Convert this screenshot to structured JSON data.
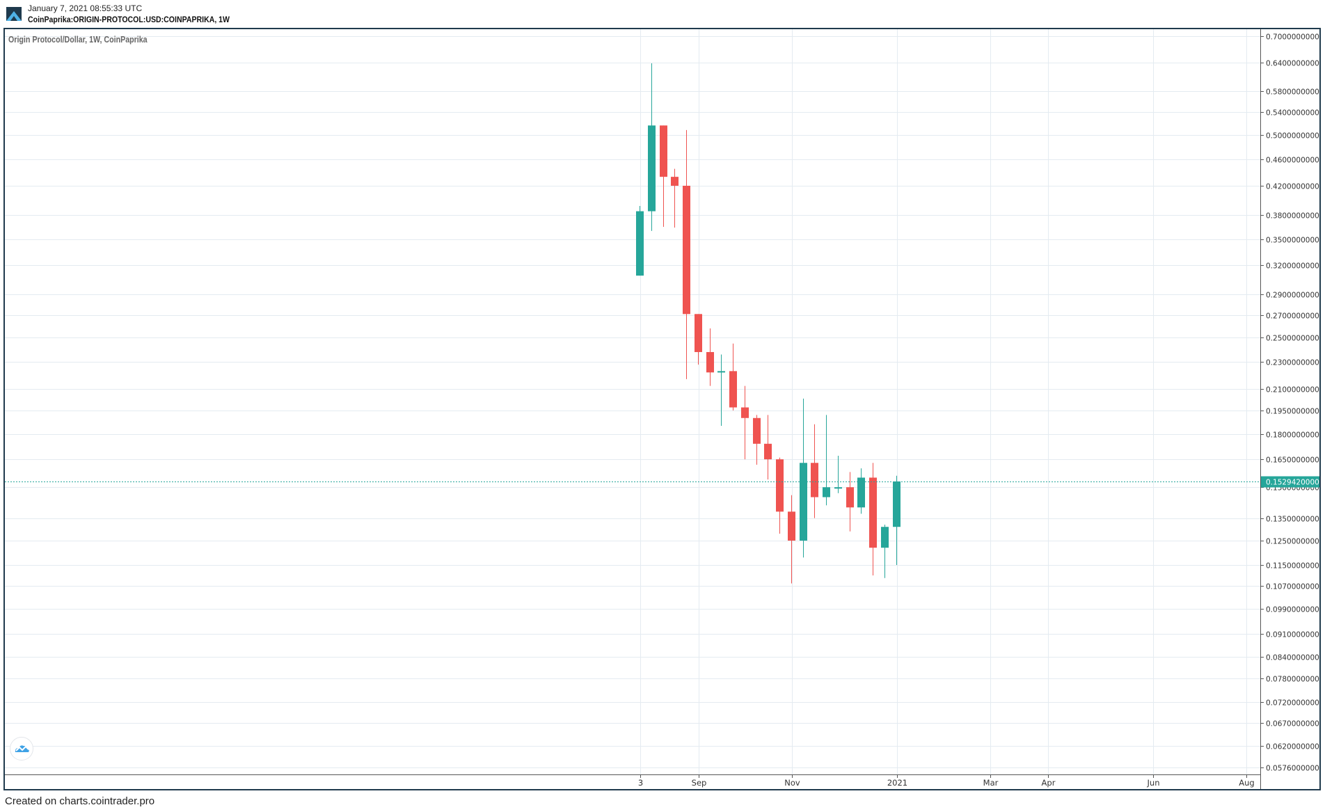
{
  "header": {
    "timestamp": "January 7, 2021 08:55:33 UTC",
    "symbol": "CoinPaprika:ORIGIN-PROTOCOL:USD:COINPAPRIKA, 1W",
    "logo_icon": "cointrader-logo-icon"
  },
  "chart": {
    "series_label": "Origin Protocol/Dollar, 1W, CoinPaprika",
    "last_price_label": "0.1529420000"
  },
  "footer": {
    "credit": "Created on charts.cointrader.pro"
  },
  "colors": {
    "up": "#26a69a",
    "down": "#ef5350",
    "grid": "#e4ebf1",
    "frame": "#1f3a4d",
    "axis": "#555555",
    "last_price": "#26a69a"
  },
  "chart_data": {
    "type": "candlestick",
    "title": "Origin Protocol/Dollar, 1W, CoinPaprika",
    "xlabel": "",
    "ylabel": "",
    "y_scale": "log",
    "ylim": [
      0.0576,
      0.7
    ],
    "grid": true,
    "legend": "none",
    "y_ticks": [
      "0.7000000000",
      "0.6400000000",
      "0.5800000000",
      "0.5400000000",
      "0.5000000000",
      "0.4600000000",
      "0.4200000000",
      "0.3800000000",
      "0.3500000000",
      "0.3200000000",
      "0.2900000000",
      "0.2700000000",
      "0.2500000000",
      "0.2300000000",
      "0.2100000000",
      "0.1950000000",
      "0.1800000000",
      "0.1650000000",
      "0.1500000000",
      "0.1350000000",
      "0.1250000000",
      "0.1150000000",
      "0.1070000000",
      "0.0990000000",
      "0.0910000000",
      "0.0840000000",
      "0.0780000000",
      "0.0720000000",
      "0.0670000000",
      "0.0620000000",
      "0.0576000000"
    ],
    "x_ticks": [
      "3",
      "Sep",
      "Nov",
      "2021",
      "Mar",
      "Apr",
      "Jun",
      "Aug"
    ],
    "last_price": 0.152942,
    "candles": [
      {
        "o": 0.309,
        "h": 0.392,
        "l": 0.309,
        "c": 0.385
      },
      {
        "o": 0.385,
        "h": 0.638,
        "l": 0.36,
        "c": 0.516
      },
      {
        "o": 0.516,
        "h": 0.516,
        "l": 0.365,
        "c": 0.433
      },
      {
        "o": 0.433,
        "h": 0.445,
        "l": 0.364,
        "c": 0.42
      },
      {
        "o": 0.42,
        "h": 0.508,
        "l": 0.217,
        "c": 0.271
      },
      {
        "o": 0.271,
        "h": 0.271,
        "l": 0.228,
        "c": 0.238
      },
      {
        "o": 0.238,
        "h": 0.258,
        "l": 0.212,
        "c": 0.222
      },
      {
        "o": 0.222,
        "h": 0.236,
        "l": 0.185,
        "c": 0.223
      },
      {
        "o": 0.223,
        "h": 0.245,
        "l": 0.195,
        "c": 0.197
      },
      {
        "o": 0.197,
        "h": 0.212,
        "l": 0.165,
        "c": 0.19
      },
      {
        "o": 0.19,
        "h": 0.192,
        "l": 0.162,
        "c": 0.174
      },
      {
        "o": 0.174,
        "h": 0.192,
        "l": 0.154,
        "c": 0.165
      },
      {
        "o": 0.165,
        "h": 0.166,
        "l": 0.128,
        "c": 0.138
      },
      {
        "o": 0.138,
        "h": 0.146,
        "l": 0.108,
        "c": 0.125
      },
      {
        "o": 0.125,
        "h": 0.203,
        "l": 0.118,
        "c": 0.163
      },
      {
        "o": 0.163,
        "h": 0.186,
        "l": 0.135,
        "c": 0.145
      },
      {
        "o": 0.145,
        "h": 0.192,
        "l": 0.141,
        "c": 0.15
      },
      {
        "o": 0.15,
        "h": 0.167,
        "l": 0.147,
        "c": 0.15
      },
      {
        "o": 0.15,
        "h": 0.158,
        "l": 0.129,
        "c": 0.14
      },
      {
        "o": 0.14,
        "h": 0.16,
        "l": 0.137,
        "c": 0.155
      },
      {
        "o": 0.155,
        "h": 0.163,
        "l": 0.111,
        "c": 0.122
      },
      {
        "o": 0.122,
        "h": 0.132,
        "l": 0.11,
        "c": 0.131
      },
      {
        "o": 0.131,
        "h": 0.156,
        "l": 0.115,
        "c": 0.153
      }
    ]
  }
}
